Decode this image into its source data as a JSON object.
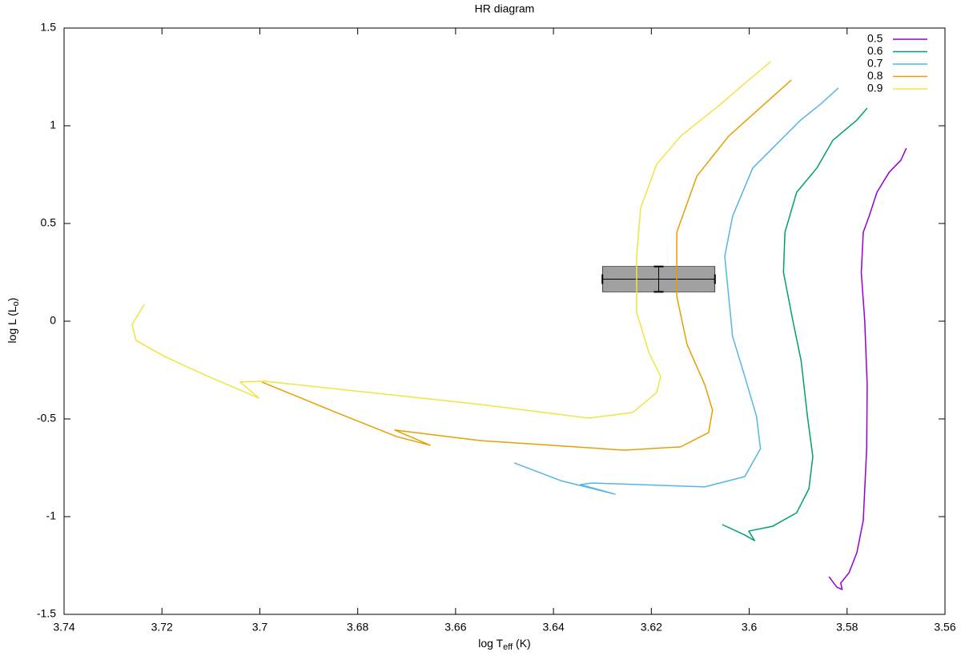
{
  "chart_data": {
    "type": "line",
    "title": "HR diagram",
    "xlabel_parts": [
      "log T",
      "eff",
      " (K)"
    ],
    "ylabel_parts": [
      "log L (L",
      "o",
      ")"
    ],
    "xlim": [
      3.74,
      3.56
    ],
    "xticks": [
      3.74,
      3.72,
      3.7,
      3.68,
      3.66,
      3.64,
      3.62,
      3.6,
      3.58,
      3.56
    ],
    "ylim": [
      -1.5,
      1.5
    ],
    "yticks": [
      -1.5,
      -1,
      -0.5,
      0,
      0.5,
      1,
      1.5
    ],
    "grid": false,
    "legend": "top-right",
    "series": [
      {
        "name": "0.5",
        "color": "#9400d3",
        "x": [
          3.5837,
          3.5821,
          3.581,
          3.5813,
          3.5796,
          3.578,
          3.5767,
          3.576,
          3.5759,
          3.5764,
          3.5771,
          3.5767,
          3.5755,
          3.5739,
          3.5714,
          3.569,
          3.5679
        ],
        "values": [
          -1.307,
          -1.361,
          -1.373,
          -1.34,
          -1.287,
          -1.184,
          -1.02,
          -0.652,
          -0.324,
          0.004,
          0.25,
          0.455,
          0.537,
          0.66,
          0.762,
          0.824,
          0.885
        ]
      },
      {
        "name": "0.6",
        "color": "#009e73",
        "x": [
          3.6055,
          3.6009,
          3.5989,
          3.6001,
          3.5952,
          3.5903,
          3.5878,
          3.587,
          3.5881,
          3.5894,
          3.5911,
          3.593,
          3.5927,
          3.5903,
          3.5862,
          3.5829,
          3.578,
          3.5759
        ],
        "values": [
          -1.041,
          -1.094,
          -1.123,
          -1.074,
          -1.049,
          -0.98,
          -0.857,
          -0.693,
          -0.488,
          -0.201,
          0.004,
          0.25,
          0.455,
          0.66,
          0.783,
          0.926,
          1.029,
          1.09
        ]
      },
      {
        "name": "0.7",
        "color": "#56b4e9",
        "x": [
          3.648,
          3.6385,
          3.6274,
          3.6345,
          3.632,
          3.6091,
          3.6009,
          3.5977,
          3.5985,
          3.6009,
          3.6034,
          3.6042,
          3.605,
          3.6034,
          3.5993,
          3.5944,
          3.5895,
          3.5854,
          3.5818
        ],
        "values": [
          -0.725,
          -0.816,
          -0.885,
          -0.836,
          -0.828,
          -0.848,
          -0.795,
          -0.652,
          -0.488,
          -0.283,
          -0.078,
          0.127,
          0.332,
          0.537,
          0.783,
          0.906,
          1.029,
          1.111,
          1.193
        ]
      },
      {
        "name": "0.8",
        "color": "#e69f00",
        "x": [
          3.6996,
          3.6844,
          3.6721,
          3.6652,
          3.6724,
          3.6549,
          3.6255,
          3.614,
          3.6083,
          3.6075,
          3.6091,
          3.6127,
          3.6148,
          3.6148,
          3.6107,
          3.6042,
          3.596,
          3.5914
        ],
        "values": [
          -0.311,
          -0.467,
          -0.59,
          -0.635,
          -0.557,
          -0.611,
          -0.66,
          -0.643,
          -0.57,
          -0.455,
          -0.324,
          -0.119,
          0.127,
          0.455,
          0.742,
          0.947,
          1.131,
          1.234
        ]
      },
      {
        "name": "0.9",
        "color": "#f0e442",
        "x": [
          3.7236,
          3.7261,
          3.7253,
          3.7195,
          3.7105,
          3.7002,
          3.704,
          3.6991,
          3.6549,
          3.6328,
          3.6238,
          3.6189,
          3.6181,
          3.6205,
          3.623,
          3.623,
          3.6222,
          3.6189,
          3.614,
          3.6058,
          3.6001,
          3.5956
        ],
        "values": [
          0.086,
          -0.016,
          -0.098,
          -0.18,
          -0.283,
          -0.393,
          -0.311,
          -0.307,
          -0.426,
          -0.496,
          -0.467,
          -0.365,
          -0.283,
          -0.16,
          0.045,
          0.332,
          0.578,
          0.803,
          0.947,
          1.111,
          1.234,
          1.328
        ]
      }
    ],
    "errorbar": {
      "x": 3.6185,
      "y": 0.215,
      "xerr": 0.0115,
      "yerr": 0.065,
      "color": "#a0a0a0"
    }
  }
}
